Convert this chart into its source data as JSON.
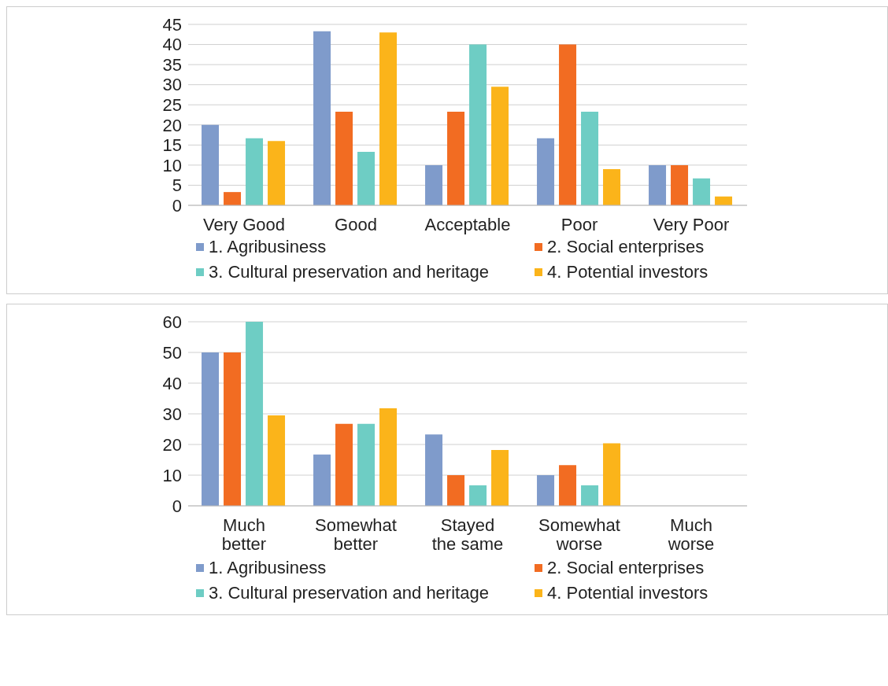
{
  "chart_data": [
    {
      "type": "bar",
      "categories": [
        "Very Good",
        "Good",
        "Acceptable",
        "Poor",
        "Very Poor"
      ],
      "series": [
        {
          "name": "1. Agribusiness",
          "color": "#7f9bcb",
          "values": [
            20,
            43.3,
            10,
            16.7,
            10
          ]
        },
        {
          "name": "2. Social enterprises",
          "color": "#f26c22",
          "values": [
            3.3,
            23.3,
            23.3,
            40,
            10
          ]
        },
        {
          "name": "3. Cultural preservation and heritage",
          "color": "#6ecdc4",
          "values": [
            16.7,
            13.3,
            40,
            23.3,
            6.7
          ]
        },
        {
          "name": "4. Potential investors",
          "color": "#fbb41a",
          "values": [
            16,
            43,
            29.5,
            9,
            2.2
          ]
        }
      ],
      "ylim": [
        0,
        45
      ],
      "yticks": [
        0,
        5,
        10,
        15,
        20,
        25,
        30,
        35,
        40,
        45
      ],
      "grid": "y",
      "legend": "bottom"
    },
    {
      "type": "bar",
      "categories": [
        "Much better",
        "Somewhat better",
        "Stayed the same",
        "Somewhat worse",
        "Much worse"
      ],
      "series": [
        {
          "name": "1. Agribusiness",
          "color": "#7f9bcb",
          "values": [
            50,
            16.7,
            23.3,
            10,
            0
          ]
        },
        {
          "name": "2. Social enterprises",
          "color": "#f26c22",
          "values": [
            50,
            26.7,
            10,
            13.3,
            0
          ]
        },
        {
          "name": "3. Cultural preservation and heritage",
          "color": "#6ecdc4",
          "values": [
            60,
            26.7,
            6.7,
            6.7,
            0
          ]
        },
        {
          "name": "4. Potential investors",
          "color": "#fbb41a",
          "values": [
            29.5,
            31.8,
            18.2,
            20.4,
            0
          ]
        }
      ],
      "ylim": [
        0,
        60
      ],
      "yticks": [
        0,
        10,
        20,
        30,
        40,
        50,
        60
      ],
      "grid": "y",
      "legend": "bottom"
    }
  ]
}
